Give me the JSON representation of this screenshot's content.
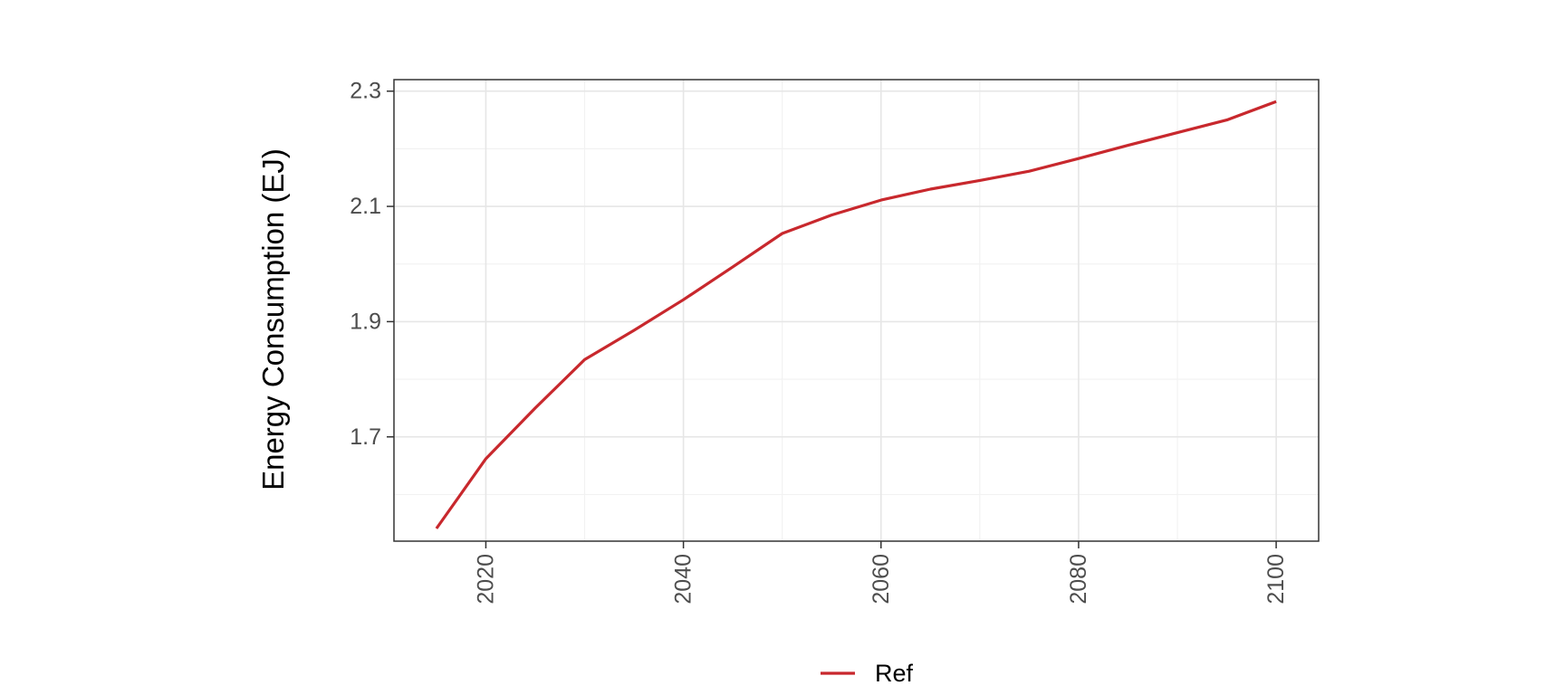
{
  "chart_data": {
    "type": "line",
    "title": "",
    "xlabel": "",
    "ylabel": "Energy Consumption (EJ)",
    "x": [
      2015,
      2020,
      2025,
      2030,
      2035,
      2040,
      2045,
      2050,
      2055,
      2060,
      2065,
      2070,
      2075,
      2080,
      2085,
      2090,
      2095,
      2100
    ],
    "series": [
      {
        "name": "Ref",
        "color": "#c8282d",
        "values": [
          1.541,
          1.662,
          1.75,
          1.834,
          1.885,
          1.938,
          1.995,
          2.053,
          2.085,
          2.111,
          2.13,
          2.145,
          2.161,
          2.183,
          2.206,
          2.228,
          2.25,
          2.282
        ]
      }
    ],
    "xlim": [
      2010.7,
      2104.3
    ],
    "ylim": [
      1.519,
      2.32
    ],
    "xticks": [
      "2020",
      "2040",
      "2060",
      "2080",
      "2100"
    ],
    "yticks": [
      "1.7",
      "1.9",
      "2.1",
      "2.3"
    ],
    "grid": true,
    "legend": "bottom"
  }
}
